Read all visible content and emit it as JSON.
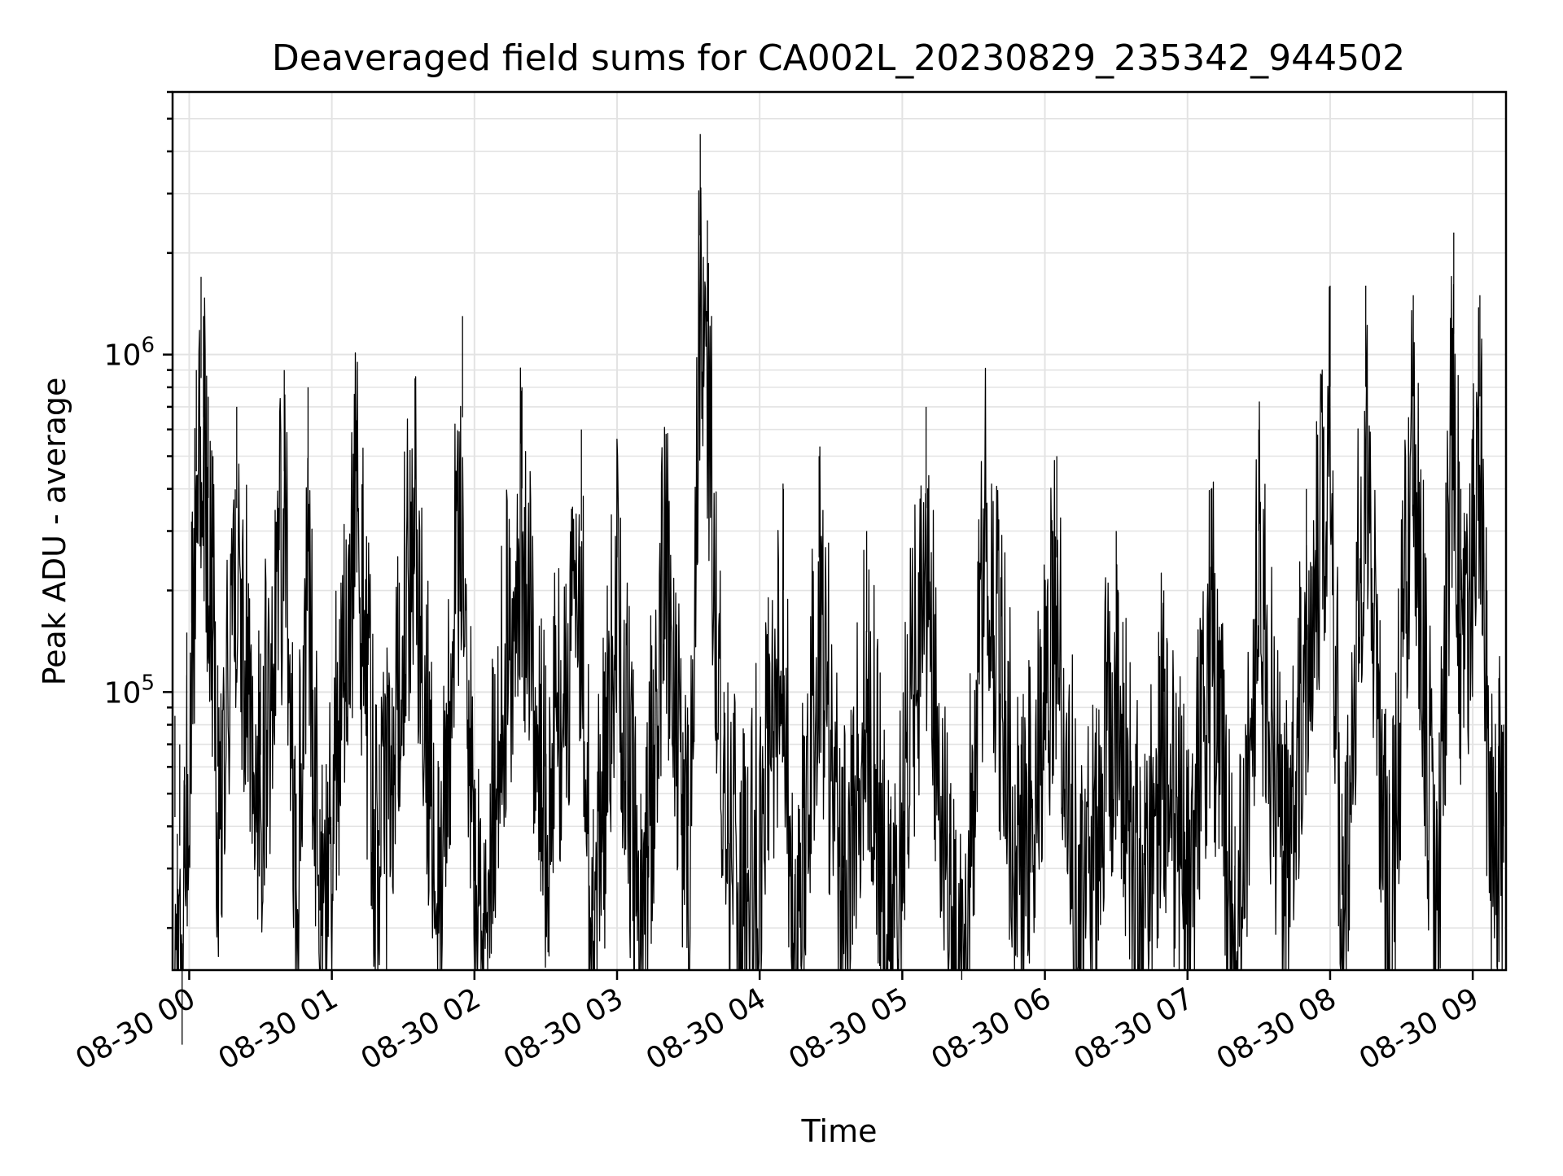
{
  "chart_data": {
    "type": "line",
    "title": "Deaveraged field sums for CA002L_20230829_235342_944502",
    "xlabel": "Time",
    "ylabel": "Peak ADU - average",
    "yscale": "log",
    "grid": true,
    "legend": "none",
    "line_color": "#000000",
    "xlim": [
      "2023-08-29 23:53",
      "2023-08-30 09:14"
    ],
    "ylim": [
      15000,
      6000000
    ],
    "x_ticks": [
      "08-30 00",
      "08-30 01",
      "08-30 02",
      "08-30 03",
      "08-30 04",
      "08-30 05",
      "08-30 06",
      "08-30 07",
      "08-30 08",
      "08-30 09"
    ],
    "y_ticks": [
      {
        "base": "10",
        "exp": "5",
        "value": 100000
      },
      {
        "base": "10",
        "exp": "6",
        "value": 1000000
      }
    ],
    "series": [
      {
        "values": [
          [
            "2023-08-29 23:54",
            85000
          ],
          [
            "2023-08-29 23:55",
            38000
          ],
          [
            "2023-08-29 23:56",
            70000
          ],
          [
            "2023-08-29 23:57",
            18000
          ],
          [
            "2023-08-29 23:58",
            60000
          ],
          [
            "2023-08-29 23:59",
            150000
          ],
          [
            "2023-08-30 00:01",
            320000
          ],
          [
            "2023-08-30 00:03",
            900000
          ],
          [
            "2023-08-30 00:05",
            1700000
          ],
          [
            "2023-08-30 00:06",
            1300000
          ],
          [
            "2023-08-30 00:08",
            750000
          ],
          [
            "2023-08-30 00:10",
            500000
          ],
          [
            "2023-08-30 00:12",
            120000
          ],
          [
            "2023-08-30 00:20",
            700000
          ],
          [
            "2023-08-30 00:30",
            130000
          ],
          [
            "2023-08-30 00:40",
            900000
          ],
          [
            "2023-08-30 00:45",
            50000
          ],
          [
            "2023-08-30 00:50",
            800000
          ],
          [
            "2023-08-30 00:55",
            45000
          ],
          [
            "2023-08-30 01:10",
            900000
          ],
          [
            "2023-08-30 01:20",
            70000
          ],
          [
            "2023-08-30 01:35",
            850000
          ],
          [
            "2023-08-30 01:45",
            60000
          ],
          [
            "2023-08-30 01:55",
            1300000
          ],
          [
            "2023-08-30 02:00",
            55000
          ],
          [
            "2023-08-30 02:20",
            800000
          ],
          [
            "2023-08-30 02:30",
            120000
          ],
          [
            "2023-08-30 02:45",
            600000
          ],
          [
            "2023-08-30 02:50",
            45000
          ],
          [
            "2023-08-30 03:00",
            500000
          ],
          [
            "2023-08-30 03:10",
            50000
          ],
          [
            "2023-08-30 03:20",
            600000
          ],
          [
            "2023-08-30 03:30",
            80000
          ],
          [
            "2023-08-30 03:35",
            4500000
          ],
          [
            "2023-08-30 03:38",
            2500000
          ],
          [
            "2023-08-30 03:45",
            100000
          ],
          [
            "2023-08-30 03:55",
            60000
          ],
          [
            "2023-08-30 04:10",
            400000
          ],
          [
            "2023-08-30 04:15",
            32000
          ],
          [
            "2023-08-30 04:25",
            500000
          ],
          [
            "2023-08-30 04:35",
            60000
          ],
          [
            "2023-08-30 04:45",
            300000
          ],
          [
            "2023-08-30 04:55",
            45000
          ],
          [
            "2023-08-30 05:10",
            700000
          ],
          [
            "2023-08-30 05:20",
            50000
          ],
          [
            "2023-08-30 05:25",
            28000
          ],
          [
            "2023-08-30 05:35",
            800000
          ],
          [
            "2023-08-30 05:50",
            70000
          ],
          [
            "2023-08-30 06:05",
            500000
          ],
          [
            "2023-08-30 06:15",
            45000
          ],
          [
            "2023-08-30 06:30",
            300000
          ],
          [
            "2023-08-30 06:40",
            60000
          ],
          [
            "2023-08-30 06:50",
            200000
          ],
          [
            "2023-08-30 07:00",
            60000
          ],
          [
            "2023-08-30 07:10",
            400000
          ],
          [
            "2023-08-30 07:20",
            40000
          ],
          [
            "2023-08-30 07:30",
            600000
          ],
          [
            "2023-08-30 07:40",
            70000
          ],
          [
            "2023-08-30 07:50",
            400000
          ],
          [
            "2023-08-30 08:00",
            1600000
          ],
          [
            "2023-08-30 08:05",
            50000
          ],
          [
            "2023-08-30 08:15",
            1600000
          ],
          [
            "2023-08-30 08:25",
            50000
          ],
          [
            "2023-08-30 08:35",
            1500000
          ],
          [
            "2023-08-30 08:45",
            45000
          ],
          [
            "2023-08-30 08:52",
            2300000
          ],
          [
            "2023-08-30 08:55",
            400000
          ],
          [
            "2023-08-30 09:00",
            600000
          ],
          [
            "2023-08-30 09:03",
            1500000
          ],
          [
            "2023-08-30 09:06",
            200000
          ],
          [
            "2023-08-30 09:08",
            80000
          ],
          [
            "2023-08-30 09:11",
            110000
          ],
          [
            "2023-08-30 09:13",
            80000
          ]
        ]
      }
    ]
  }
}
